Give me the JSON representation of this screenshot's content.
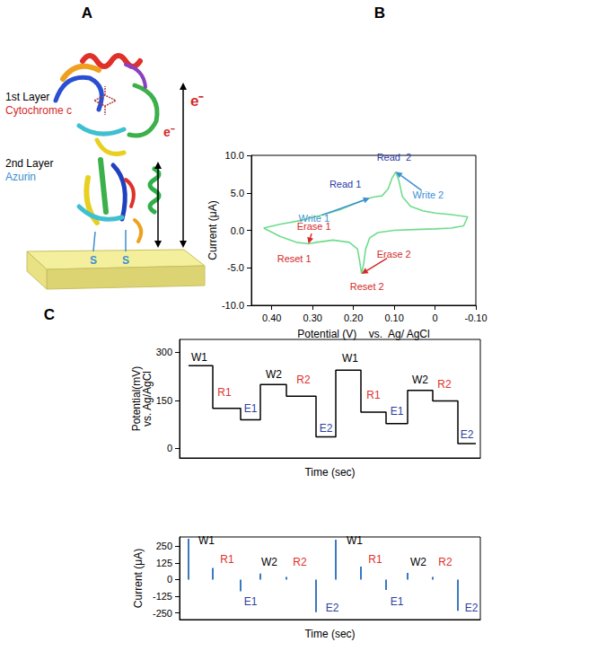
{
  "panel_labels": [
    "A",
    "B",
    "C"
  ],
  "diagram": {
    "layer1": "1st Layer",
    "layer1_protein": "Cytochrome c",
    "layer2": "2nd Layer",
    "layer2_protein": "Azurin",
    "electron_labels": [
      "e⁻",
      "e⁻"
    ],
    "thiol_labels": [
      "S",
      "S"
    ]
  },
  "chart_data": [
    {
      "type": "line",
      "x_label": "Potential (V)    vs.  Ag/ AgCl",
      "y_label": "Current (μA)",
      "color": "#6fdc8c",
      "x": [
        0.42,
        0.38,
        0.33,
        0.28,
        0.23,
        0.19,
        0.16,
        0.145,
        0.13,
        0.115,
        0.105,
        0.096,
        0.088,
        0.08,
        0.06,
        0.03,
        0.0,
        -0.04,
        -0.08,
        -0.07,
        -0.04,
        0.0,
        0.05,
        0.1,
        0.14,
        0.16,
        0.17,
        0.175,
        0.18,
        0.185,
        0.19,
        0.21,
        0.25,
        0.29,
        0.31,
        0.34,
        0.38,
        0.42
      ],
      "values": [
        0.3,
        0.8,
        1.3,
        2.0,
        2.8,
        3.7,
        4.3,
        4.5,
        4.6,
        5.5,
        7.0,
        7.8,
        6.5,
        4.5,
        3.2,
        2.6,
        2.3,
        2.1,
        1.8,
        0.6,
        0.3,
        0.2,
        0.1,
        0.0,
        -0.3,
        -1.0,
        -2.5,
        -4.5,
        -5.8,
        -4.0,
        -2.5,
        -1.6,
        -1.3,
        -1.6,
        -1.8,
        -1.6,
        -0.8,
        0.3
      ],
      "xlim": [
        0.45,
        -0.1
      ],
      "xticks": [
        {
          "value": 0.4,
          "label": "0.40"
        },
        {
          "value": 0.3,
          "label": "0.30"
        },
        {
          "value": 0.2,
          "label": "0.20"
        },
        {
          "value": 0.1,
          "label": "0.10"
        },
        0,
        {
          "value": -0.1,
          "label": "-0.10"
        }
      ],
      "ylim": [
        -10,
        10
      ],
      "yticks": [
        {
          "value": 10,
          "label": "10.0"
        },
        {
          "value": 5,
          "label": "5.0"
        },
        {
          "value": 0,
          "label": "0.0"
        },
        {
          "value": -5,
          "label": "-5.0"
        },
        {
          "value": -10,
          "label": "-10.0"
        }
      ],
      "grid": false,
      "annotations": [
        {
          "text": "Write 1",
          "x": 0.16,
          "y": 4.3,
          "color": "#3c8fd6"
        },
        {
          "text": "Read 1",
          "x": 0.145,
          "y": 4.5,
          "color": "#2d3aa8"
        },
        {
          "text": "Read  2",
          "x": 0.096,
          "y": 7.8,
          "color": "#2d3aa8"
        },
        {
          "text": "Write 2",
          "x": 0.096,
          "y": 7.8,
          "color": "#3c8fd6"
        },
        {
          "text": "Erase 1",
          "x": 0.31,
          "y": -1.8,
          "color": "#d42a2a"
        },
        {
          "text": "Reset 1",
          "x": 0.31,
          "y": -1.8,
          "color": "#d42a2a"
        },
        {
          "text": "Erase 2",
          "x": 0.18,
          "y": -5.8,
          "color": "#d42a2a"
        },
        {
          "text": "Reset 2",
          "x": 0.18,
          "y": -5.8,
          "color": "#d42a2a"
        }
      ]
    },
    {
      "type": "line",
      "line_style": "step",
      "x_label": "Time (sec)",
      "y_label": "Potential(mV)\nvs. Ag/AgCl",
      "color": "#000000",
      "x": [
        0,
        27,
        58,
        80,
        109,
        142,
        164,
        192,
        220,
        244,
        272,
        300,
        320
      ],
      "values": [
        258,
        125,
        89,
        199,
        163,
        36,
        244,
        113,
        77,
        181,
        148,
        15,
        15
      ],
      "xlim": [
        -10,
        325
      ],
      "ylim": [
        -30,
        340
      ],
      "yticks": [
        0,
        150,
        300
      ],
      "tick_labels": "y",
      "grid": false,
      "annotations": [
        {
          "text": "W1",
          "x": 12,
          "y": 285,
          "color": "#000000"
        },
        {
          "text": "R1",
          "x": 40,
          "y": 175,
          "color": "#e0302a"
        },
        {
          "text": "E1",
          "x": 69,
          "y": 125,
          "color": "#2c3e9e"
        },
        {
          "text": "W2",
          "x": 95,
          "y": 230,
          "color": "#000000"
        },
        {
          "text": "R2",
          "x": 128,
          "y": 215,
          "color": "#e0302a"
        },
        {
          "text": "E2",
          "x": 153,
          "y": 62,
          "color": "#2c3e9e"
        },
        {
          "text": "W1",
          "x": 180,
          "y": 280,
          "color": "#000000"
        },
        {
          "text": "R1",
          "x": 206,
          "y": 165,
          "color": "#e0302a"
        },
        {
          "text": "E1",
          "x": 232,
          "y": 115,
          "color": "#2c3e9e"
        },
        {
          "text": "W2",
          "x": 258,
          "y": 215,
          "color": "#000000"
        },
        {
          "text": "R2",
          "x": 285,
          "y": 200,
          "color": "#e0302a"
        },
        {
          "text": "E2",
          "x": 310,
          "y": 42,
          "color": "#2c3e9e"
        }
      ]
    },
    {
      "type": "bar",
      "x_label": "Time (sec)",
      "y_label": "Current (μA)",
      "color": "#3b78c2",
      "x": [
        0,
        27,
        58,
        80,
        109,
        142,
        164,
        192,
        220,
        244,
        272,
        300
      ],
      "values": [
        306,
        87,
        -87,
        46,
        20,
        -245,
        300,
        97,
        -77,
        51,
        20,
        -235
      ],
      "xlim": [
        -10,
        325
      ],
      "ylim": [
        -300,
        320
      ],
      "yticks": [
        -250,
        -125,
        0,
        125,
        250
      ],
      "tick_labels": "y",
      "grid": false,
      "annotations": [
        {
          "text": "W1",
          "x": 20,
          "y": 290,
          "color": "#000000"
        },
        {
          "text": "R1",
          "x": 43,
          "y": 150,
          "color": "#e0302a"
        },
        {
          "text": "E1",
          "x": 69,
          "y": -168,
          "color": "#2c3e9e"
        },
        {
          "text": "W2",
          "x": 90,
          "y": 130,
          "color": "#000000"
        },
        {
          "text": "R2",
          "x": 124,
          "y": 130,
          "color": "#e0302a"
        },
        {
          "text": "E2",
          "x": 160,
          "y": -210,
          "color": "#2c3e9e"
        },
        {
          "text": "W1",
          "x": 185,
          "y": 290,
          "color": "#000000"
        },
        {
          "text": "R1",
          "x": 208,
          "y": 150,
          "color": "#e0302a"
        },
        {
          "text": "E1",
          "x": 232,
          "y": -168,
          "color": "#2c3e9e"
        },
        {
          "text": "W2",
          "x": 256,
          "y": 130,
          "color": "#000000"
        },
        {
          "text": "R2",
          "x": 286,
          "y": 130,
          "color": "#e0302a"
        },
        {
          "text": "E2",
          "x": 315,
          "y": -210,
          "color": "#2c3e9e"
        }
      ]
    }
  ]
}
